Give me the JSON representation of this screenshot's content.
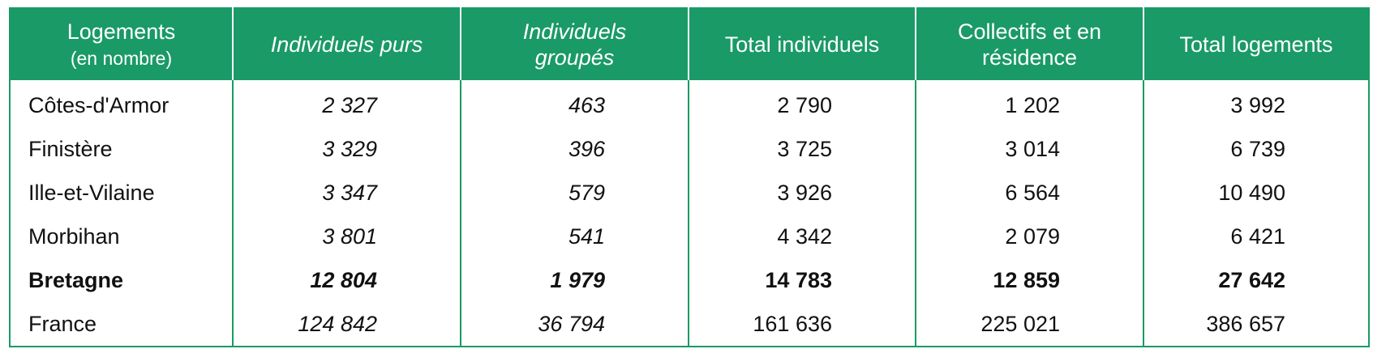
{
  "table": {
    "header": [
      [
        "Logements",
        "(en nombre)"
      ],
      [
        "Individuels purs"
      ],
      [
        "Individuels",
        "groupés"
      ],
      [
        "Total individuels"
      ],
      [
        "Collectifs et en",
        "résidence"
      ],
      [
        "Total logements"
      ]
    ],
    "italic_columns": [
      1,
      2
    ],
    "rows": [
      {
        "cells": [
          "Côtes-d'Armor",
          "2 327",
          "463",
          "2 790",
          "1 202",
          "3 992"
        ],
        "bold": false
      },
      {
        "cells": [
          "Finistère",
          "3 329",
          "396",
          "3 725",
          "3 014",
          "6 739"
        ],
        "bold": false
      },
      {
        "cells": [
          "Ille-et-Vilaine",
          "3 347",
          "579",
          "3 926",
          "6 564",
          "10 490"
        ],
        "bold": false
      },
      {
        "cells": [
          "Morbihan",
          "3 801",
          "541",
          "4 342",
          "2 079",
          "6 421"
        ],
        "bold": false
      },
      {
        "cells": [
          "Bretagne",
          "12 804",
          "1 979",
          "14 783",
          "12 859",
          "27 642"
        ],
        "bold": true
      },
      {
        "cells": [
          "France",
          "124 842",
          "36 794",
          "161 636",
          "225 021",
          "386 657"
        ],
        "bold": false
      }
    ]
  }
}
